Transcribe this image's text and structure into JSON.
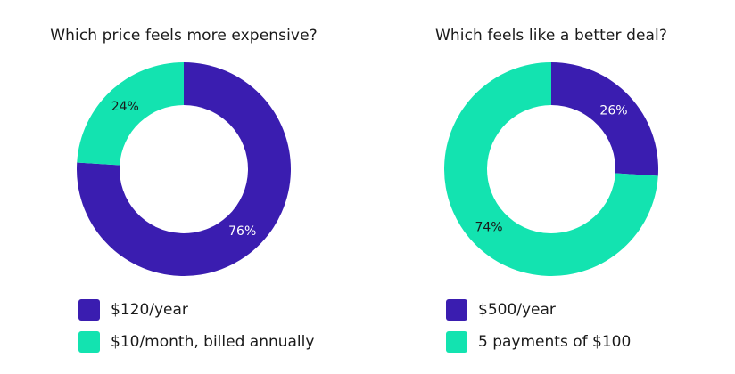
{
  "colors": {
    "purple": "#3A1DB0",
    "teal": "#13E3B0"
  },
  "chart_data": [
    {
      "type": "pie",
      "title": "Which price feels more expensive?",
      "slices": [
        {
          "label": "$120/year",
          "value": 76,
          "display": "76%",
          "color": "#3A1DB0",
          "text_color": "#ffffff"
        },
        {
          "label": "$10/month, billed annually",
          "value": 24,
          "display": "24%",
          "color": "#13E3B0",
          "text_color": "#1a1a1a"
        }
      ]
    },
    {
      "type": "pie",
      "title": "Which feels like a better deal?",
      "slices": [
        {
          "label": "$500/year",
          "value": 26,
          "display": "26%",
          "color": "#3A1DB0",
          "text_color": "#ffffff"
        },
        {
          "label": "5 payments of $100",
          "value": 74,
          "display": "74%",
          "color": "#13E3B0",
          "text_color": "#1a1a1a"
        }
      ]
    }
  ]
}
